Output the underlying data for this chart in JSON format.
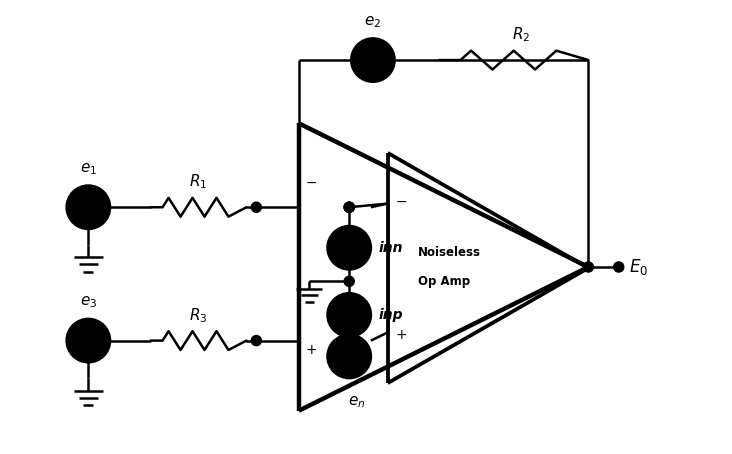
{
  "bg_color": "#ffffff",
  "line_color": "#000000",
  "lw": 1.8,
  "blw": 3.2,
  "figsize": [
    7.32,
    4.54
  ],
  "dpi": 100,
  "xlim": [
    0,
    10
  ],
  "ylim": [
    0,
    6.2
  ],
  "labels": {
    "e1": "$e_1$",
    "e2": "$e_2$",
    "e3": "$e_3$",
    "R1": "$R_1$",
    "R2": "$R_2$",
    "R3": "$R_3$",
    "inn": "inn",
    "inp": "inp",
    "en": "$e_n$",
    "E0": "$E_0$",
    "minus_outer": "$-$",
    "plus_outer": "$+$",
    "minus_inner": "$-$",
    "plus_inner": "$+$",
    "noiseless1": "Noiseless",
    "noiseless2": "Op Amp"
  }
}
